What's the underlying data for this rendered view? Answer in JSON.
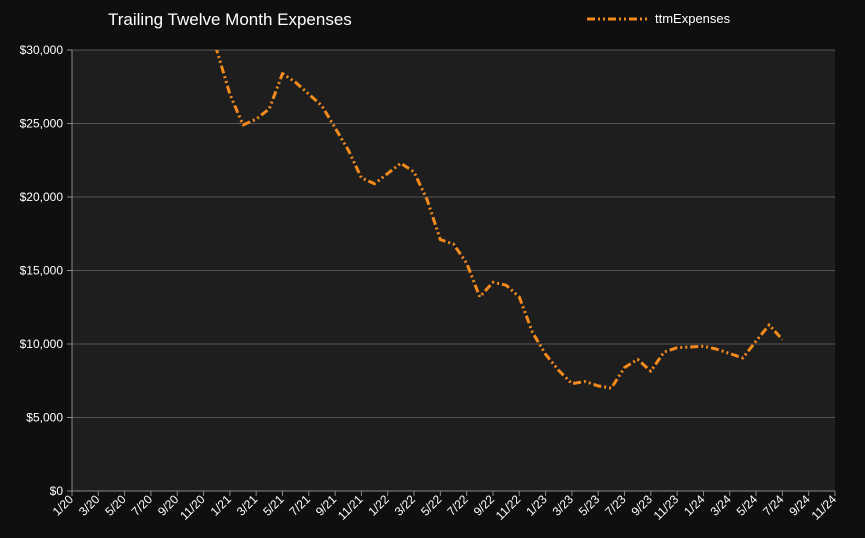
{
  "chart_data": {
    "type": "line",
    "title": "Trailing Twelve Month Expenses",
    "xlabel": "",
    "ylabel": "",
    "ylim": [
      0,
      30000
    ],
    "yticks": [
      0,
      5000,
      10000,
      15000,
      20000,
      25000,
      30000
    ],
    "ytick_labels": [
      "$0",
      "$5,000",
      "$10,000",
      "$15,000",
      "$20,000",
      "$25,000",
      "$30,000"
    ],
    "x_categories": [
      "1/20",
      "3/20",
      "5/20",
      "7/20",
      "9/20",
      "11/20",
      "1/21",
      "3/21",
      "5/21",
      "7/21",
      "9/21",
      "11/21",
      "1/22",
      "3/22",
      "5/22",
      "7/22",
      "9/22",
      "11/22",
      "1/23",
      "3/23",
      "5/23",
      "7/23",
      "9/23",
      "11/23",
      "1/24",
      "3/24",
      "5/24",
      "7/24",
      "9/24",
      "11/24"
    ],
    "grid": true,
    "legend_position": "top-right",
    "series": [
      {
        "name": "ttmExpenses",
        "color": "#f28a1c",
        "x": [
          "11/20",
          "12/20",
          "1/21",
          "2/21",
          "3/21",
          "4/21",
          "5/21",
          "6/21",
          "7/21",
          "8/21",
          "9/21",
          "10/21",
          "11/21",
          "12/21",
          "1/22",
          "2/22",
          "3/22",
          "4/22",
          "5/22",
          "6/22",
          "7/22",
          "8/22",
          "9/22",
          "10/22",
          "11/22",
          "12/22",
          "1/23",
          "2/23",
          "3/23",
          "4/23",
          "5/23",
          "6/23",
          "7/23",
          "8/23",
          "9/23",
          "10/23",
          "11/23",
          "12/23",
          "1/24",
          "2/24",
          "3/24",
          "4/24",
          "5/24",
          "6/24",
          "7/24"
        ],
        "values": [
          31500,
          30000,
          27000,
          24900,
          25300,
          26000,
          28400,
          27800,
          27000,
          26200,
          24700,
          23200,
          21300,
          20900,
          21600,
          22300,
          21700,
          19800,
          17100,
          16800,
          15500,
          13200,
          14200,
          14000,
          13200,
          10800,
          9300,
          8200,
          7300,
          7450,
          7150,
          7000,
          8400,
          8950,
          8150,
          9450,
          9750,
          9800,
          9850,
          9650,
          9350,
          9050,
          10200,
          11300,
          10300
        ]
      }
    ]
  }
}
